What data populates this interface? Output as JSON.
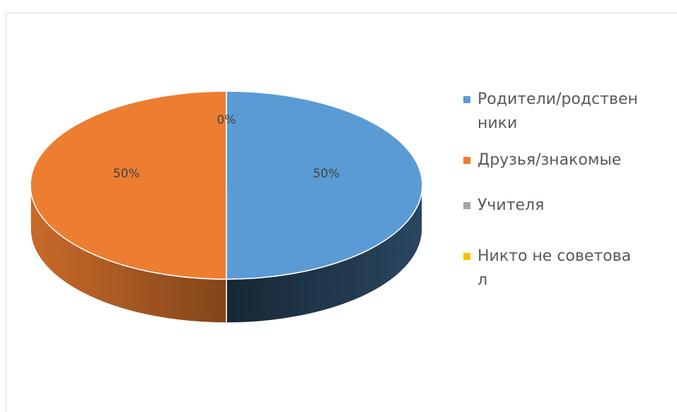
{
  "chart_data": {
    "type": "pie",
    "categories": [
      "Родители/родственники",
      "Друзья/знакомые",
      "Учителя",
      "Никто не советовал"
    ],
    "values": [
      50,
      50,
      0,
      0
    ],
    "value_labels": [
      "50%",
      "50%",
      "0%",
      null
    ],
    "colors": [
      "#5b9bd5",
      "#ed7d31",
      "#a5a5a5",
      "#ffc000"
    ],
    "legend": "right"
  }
}
